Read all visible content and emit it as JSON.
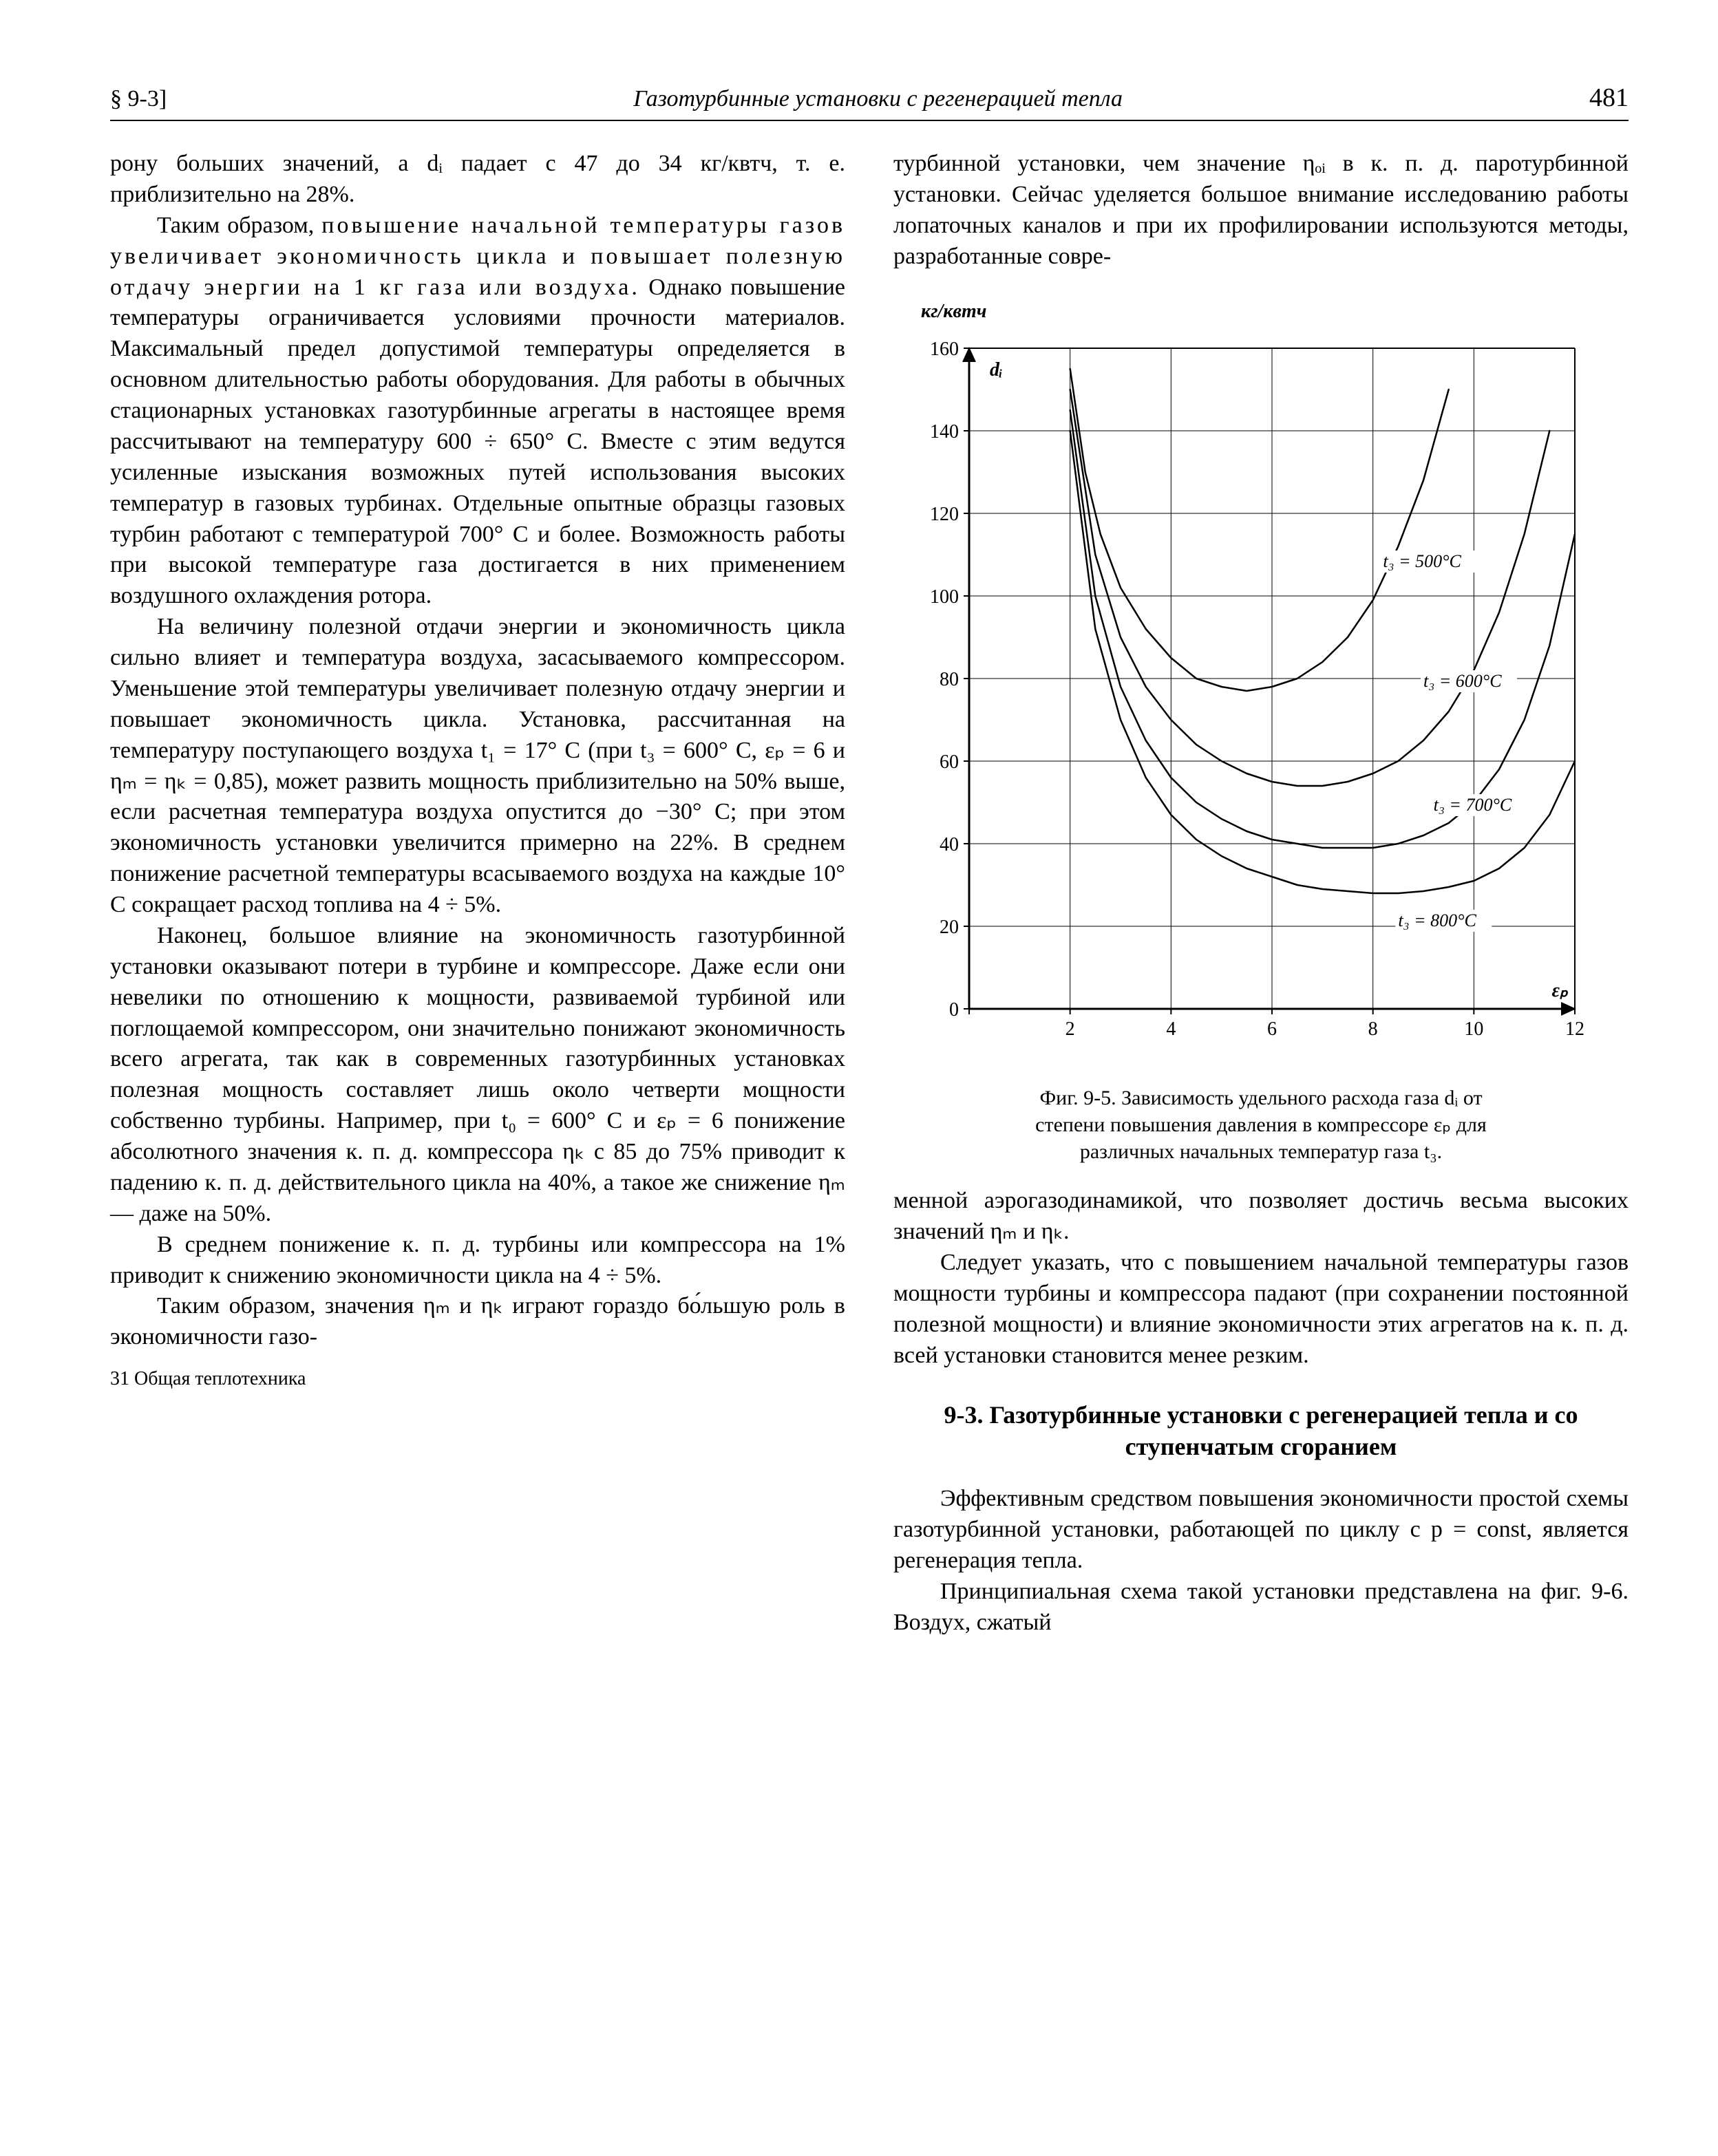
{
  "header": {
    "section_ref": "§ 9-3]",
    "running": "Газотурбинные установки с регенерацией тепла",
    "page_num": "481"
  },
  "left_column": {
    "p1": "рону больших значений, а dᵢ падает с 47 до 34 кг/квтч, т. е. приблизительно на 28%.",
    "p2a": "Таким образом, ",
    "p2b": "повышение начальной температуры газов увеличивает экономичность цикла и повышает полезную отдачу энергии на 1 кг газа или воздуха.",
    "p2c": " Однако повышение температуры ограничивается условиями прочности материалов. Максимальный предел допустимой температуры определяется в основном длительностью работы оборудования. Для работы в обычных стационарных установках газотурбинные агрегаты в настоящее время рассчитывают на температуру 600 ÷ 650° С. Вместе с этим ведутся усиленные изыскания возможных путей использования высоких температур в газовых турбинах. Отдельные опытные образцы газовых турбин работают с температурой 700° С и более. Возможность работы при высокой температуре газа достигается в них применением воздушного охлаждения ротора.",
    "p3": "На величину полезной отдачи энергии и экономичность цикла сильно влияет и температура воздуха, засасываемого компрессором. Уменьшение этой температуры увеличивает полезную отдачу энергии и повышает экономичность цикла. Установка, рассчитанная на температуру поступающего воздуха t₁ = 17° С (при t₃ = 600° С, εₚ = 6 и ηₘ = ηₖ = 0,85), может развить мощность приблизительно на 50% выше, если расчетная температура воздуха опустится до −30° С; при этом экономичность установки увеличится примерно на 22%. В среднем понижение расчетной температуры всасываемого воздуха на каждые 10° С сокращает расход топлива на 4 ÷ 5%.",
    "p4": "Наконец, большое влияние на экономичность газотурбинной установки оказывают потери в турбине и компрессоре. Даже если они невелики по отношению к мощности, развиваемой турбиной или поглощаемой компрессором, они значительно понижают экономичность всего агрегата, так как в современных газотурбинных установках полезная мощность составляет лишь около четверти мощности собственно турбины. Например, при t₀ = 600° С и εₚ = 6 понижение абсолютного значения к. п. д. компрессора ηₖ с 85 до 75% приводит к падению к. п. д. действительного цикла на 40%, а такое же снижение ηₘ — даже на 50%.",
    "p5": "В среднем понижение к. п. д. турбины или компрессора на 1% приводит к снижению экономичности цикла на 4 ÷ 5%.",
    "p6": "Таким образом, значения ηₘ и ηₖ играют гораздо бо́льшую роль в экономичности газо-",
    "footer": "31 Общая теплотехника"
  },
  "right_column": {
    "p1": "турбинной установки, чем значение ηₒᵢ в к. п. д. паротурбинной установки. Сейчас уделяется большое внимание исследованию работы лопаточных каналов и при их профилировании используются методы, разработанные совре-",
    "p2": "менной аэрогазодинамикой, что позволяет достичь весьма высоких значений ηₘ и ηₖ.",
    "p3": "Следует указать, что с повышением начальной температуры газов мощности турбины и компрессора падают (при сохранении постоянной полезной мощности) и влияние экономичности этих агрегатов на к. п. д. всей установки становится менее резким.",
    "heading": "9-3. Газотурбинные установки с регенерацией тепла и со ступенчатым сгоранием",
    "p4": "Эффективным средством повышения экономичности простой схемы газотурбинной установки, работающей по циклу с p = const, является регенерация тепла.",
    "p5": "Принципиальная схема такой установки представлена на фиг. 9-6. Воздух, сжатый"
  },
  "figure": {
    "type": "line",
    "y_axis_label": "кг/квтч",
    "y_var": "dᵢ",
    "x_axis_label": "εₚ",
    "xlim": [
      0,
      12
    ],
    "ylim": [
      0,
      160
    ],
    "xticks": [
      0,
      2,
      4,
      6,
      8,
      10,
      12
    ],
    "yticks": [
      0,
      20,
      40,
      60,
      80,
      100,
      120,
      140,
      160
    ],
    "background_color": "#ffffff",
    "axis_color": "#000000",
    "grid_color": "#000000",
    "stroke_width": 2.5,
    "curve_color": "#000000",
    "title_fontsize": 30,
    "label_fontsize": 28,
    "tick_fontsize": 28,
    "curves": [
      {
        "label": "t₃ = 500°C",
        "label_xy": [
          8.2,
          107
        ],
        "points": [
          [
            2.0,
            155
          ],
          [
            2.3,
            130
          ],
          [
            2.6,
            115
          ],
          [
            3.0,
            102
          ],
          [
            3.5,
            92
          ],
          [
            4.0,
            85
          ],
          [
            4.5,
            80
          ],
          [
            5.0,
            78
          ],
          [
            5.5,
            77
          ],
          [
            6.0,
            78
          ],
          [
            6.5,
            80
          ],
          [
            7.0,
            84
          ],
          [
            7.5,
            90
          ],
          [
            8.0,
            99
          ],
          [
            8.5,
            112
          ],
          [
            9.0,
            128
          ],
          [
            9.5,
            150
          ]
        ]
      },
      {
        "label": "t₃ = 600°C",
        "label_xy": [
          9.0,
          78
        ],
        "points": [
          [
            2.0,
            150
          ],
          [
            2.5,
            110
          ],
          [
            3.0,
            90
          ],
          [
            3.5,
            78
          ],
          [
            4.0,
            70
          ],
          [
            4.5,
            64
          ],
          [
            5.0,
            60
          ],
          [
            5.5,
            57
          ],
          [
            6.0,
            55
          ],
          [
            6.5,
            54
          ],
          [
            7.0,
            54
          ],
          [
            7.5,
            55
          ],
          [
            8.0,
            57
          ],
          [
            8.5,
            60
          ],
          [
            9.0,
            65
          ],
          [
            9.5,
            72
          ],
          [
            10.0,
            82
          ],
          [
            10.5,
            96
          ],
          [
            11.0,
            115
          ],
          [
            11.5,
            140
          ]
        ]
      },
      {
        "label": "t₃ = 700°C",
        "label_xy": [
          9.2,
          48
        ],
        "points": [
          [
            2.0,
            145
          ],
          [
            2.5,
            100
          ],
          [
            3.0,
            78
          ],
          [
            3.5,
            65
          ],
          [
            4.0,
            56
          ],
          [
            4.5,
            50
          ],
          [
            5.0,
            46
          ],
          [
            5.5,
            43
          ],
          [
            6.0,
            41
          ],
          [
            6.5,
            40
          ],
          [
            7.0,
            39
          ],
          [
            7.5,
            39
          ],
          [
            8.0,
            39
          ],
          [
            8.5,
            40
          ],
          [
            9.0,
            42
          ],
          [
            9.5,
            45
          ],
          [
            10.0,
            50
          ],
          [
            10.5,
            58
          ],
          [
            11.0,
            70
          ],
          [
            11.5,
            88
          ],
          [
            12.0,
            115
          ]
        ]
      },
      {
        "label": "t₃ = 800°C",
        "label_xy": [
          8.5,
          20
        ],
        "points": [
          [
            2.0,
            140
          ],
          [
            2.5,
            92
          ],
          [
            3.0,
            70
          ],
          [
            3.5,
            56
          ],
          [
            4.0,
            47
          ],
          [
            4.5,
            41
          ],
          [
            5.0,
            37
          ],
          [
            5.5,
            34
          ],
          [
            6.0,
            32
          ],
          [
            6.5,
            30
          ],
          [
            7.0,
            29
          ],
          [
            7.5,
            28.5
          ],
          [
            8.0,
            28
          ],
          [
            8.5,
            28
          ],
          [
            9.0,
            28.5
          ],
          [
            9.5,
            29.5
          ],
          [
            10.0,
            31
          ],
          [
            10.5,
            34
          ],
          [
            11.0,
            39
          ],
          [
            11.5,
            47
          ],
          [
            12.0,
            60
          ]
        ]
      }
    ],
    "caption_l1": "Фиг. 9-5. Зависимость удельного расхода газа dᵢ от",
    "caption_l2": "степени повышения давления в компрессоре εₚ для",
    "caption_l3": "различных начальных температур газа t₃."
  }
}
